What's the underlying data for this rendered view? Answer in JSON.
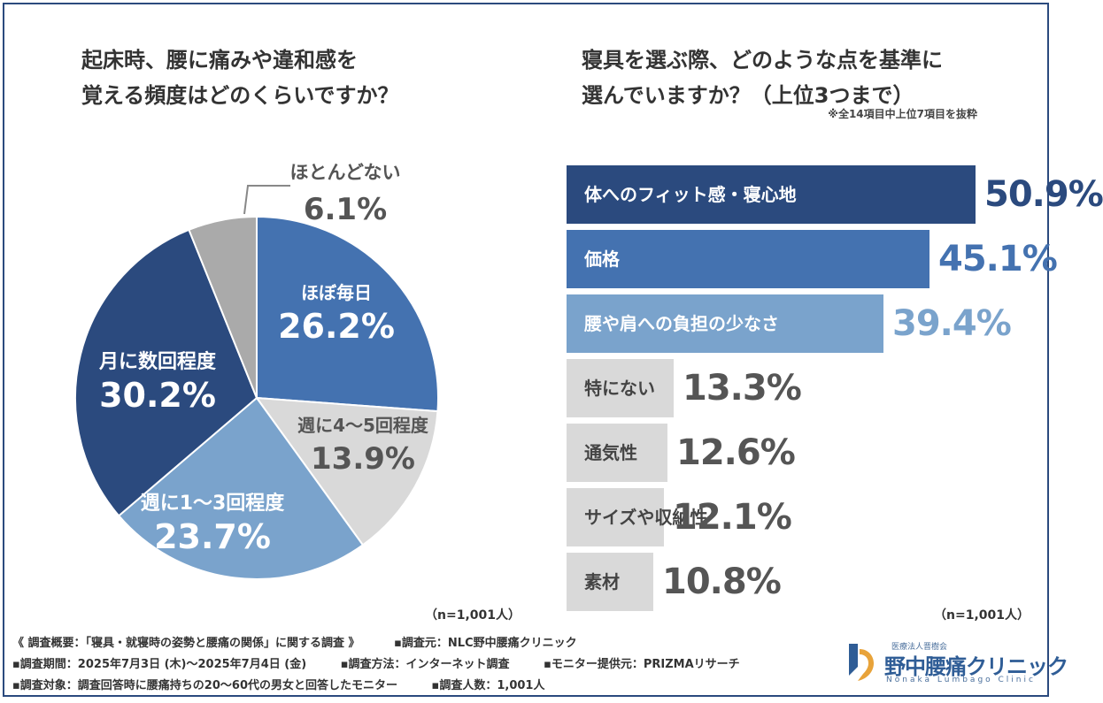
{
  "chart_data": [
    {
      "type": "pie",
      "title": [
        "起床時、腰に痛みや違和感を",
        "覚える頻度はどのくらいですか？"
      ],
      "slices": [
        {
          "label": "ほぼ毎日",
          "value": 26.2,
          "display": "26.2%",
          "color": "#4472b0",
          "text_color": "#ffffff"
        },
        {
          "label": "週に4〜5回程度",
          "value": 13.9,
          "display": "13.9%",
          "color": "#d9d9d9",
          "text_color": "#555555"
        },
        {
          "label": "週に1〜3回程度",
          "value": 23.7,
          "display": "23.7%",
          "color": "#7aa3cc",
          "text_color": "#ffffff"
        },
        {
          "label": "月に数回程度",
          "value": 30.2,
          "display": "30.2%",
          "color": "#2b4a7e",
          "text_color": "#ffffff"
        },
        {
          "label": "ほとんどない",
          "value": 6.1,
          "display": "6.1%",
          "color": "#aaaaaa",
          "text_color": "#555555"
        }
      ],
      "n": "（n=1,001人）"
    },
    {
      "type": "bar",
      "orientation": "horizontal",
      "title": [
        "寝具を選ぶ際、どのような点を基準に",
        "選んでいますか？（上位3つまで）"
      ],
      "note": "※全14項目中上位7項目を抜粋",
      "xlim": [
        0,
        60
      ],
      "bars": [
        {
          "label": "体へのフィット感・寝心地",
          "value": 50.9,
          "display": "50.9%",
          "color": "#2b4a7e",
          "label_color": "#ffffff",
          "value_color": "#2b4a7e"
        },
        {
          "label": "価格",
          "value": 45.1,
          "display": "45.1%",
          "color": "#4472b0",
          "label_color": "#ffffff",
          "value_color": "#4472b0"
        },
        {
          "label": "腰や肩への負担の少なさ",
          "value": 39.4,
          "display": "39.4%",
          "color": "#7aa3cc",
          "label_color": "#ffffff",
          "value_color": "#7aa3cc"
        },
        {
          "label": "特にない",
          "value": 13.3,
          "display": "13.3%",
          "color": "#d9d9d9",
          "label_color": "#444444",
          "value_color": "#555555"
        },
        {
          "label": "通気性",
          "value": 12.6,
          "display": "12.6%",
          "color": "#d9d9d9",
          "label_color": "#444444",
          "value_color": "#555555"
        },
        {
          "label": "サイズや収納性",
          "value": 12.1,
          "display": "12.1%",
          "color": "#d9d9d9",
          "label_color": "#444444",
          "value_color": "#555555"
        },
        {
          "label": "素材",
          "value": 10.8,
          "display": "10.8%",
          "color": "#d9d9d9",
          "label_color": "#444444",
          "value_color": "#555555"
        }
      ],
      "n": "（n=1,001人）"
    }
  ],
  "footer": {
    "line1": [
      "《 調査概要：「寝具・就寝時の姿勢と腰痛の関係」に関する調査 》",
      "▪調査元：NLC野中腰痛クリニック"
    ],
    "line2": [
      "▪調査期間：2025年7月3日 (木)〜2025年7月4日 (金)",
      "▪調査方法：インターネット調査",
      "▪モニター提供元：PRIZMAリサーチ"
    ],
    "line3": [
      "▪調査対象：調査回答時に腰痛持ちの20〜60代の男女と回答したモニター",
      "▪調査人数：1,001人"
    ]
  },
  "logo": {
    "sub": "医療法人晋樹会",
    "name": "野中腰痛クリニック",
    "en": "Nonaka Lumbago Clinic"
  }
}
